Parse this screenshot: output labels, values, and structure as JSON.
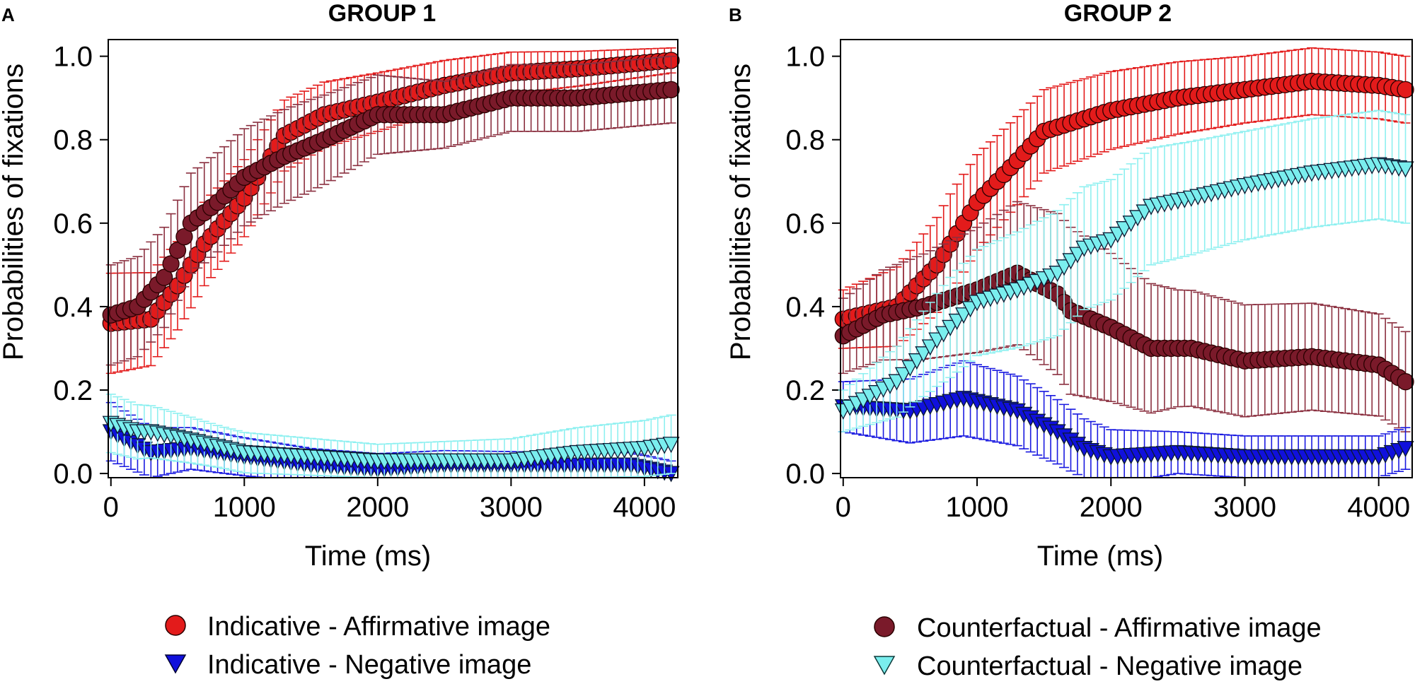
{
  "figure": {
    "legend_left": [
      {
        "label": "Indicative - Affirmative image",
        "color": "#e31b1b",
        "marker": "circle"
      },
      {
        "label": "Indicative - Negative image",
        "color": "#1010dc",
        "marker": "triangle-down"
      }
    ],
    "legend_right": [
      {
        "label": "Counterfactual - Affirmative image",
        "color": "#7a1a2a",
        "marker": "circle"
      },
      {
        "label": "Counterfactual - Negative image",
        "color": "#7aeeee",
        "marker": "triangle-down"
      }
    ]
  },
  "chart_data": [
    {
      "panel": "A",
      "title": "GROUP 1",
      "type": "line",
      "xlabel": "Time (ms)",
      "ylabel": "Probabilities of fixations",
      "xlim": [
        -20,
        4250
      ],
      "ylim": [
        -0.01,
        1.04
      ],
      "xticks": [
        0,
        1000,
        2000,
        3000,
        4000
      ],
      "xtick_labels": [
        "0",
        "1000",
        "2000",
        "3000",
        "4000"
      ],
      "yticks": [
        0,
        0.2,
        0.4,
        0.6,
        0.8,
        1.0
      ],
      "ytick_labels": [
        "0.0",
        "0.2",
        "0.4",
        "0.6",
        "0.8",
        "1.0"
      ],
      "x_start": 0,
      "x_step": 50,
      "x_count": 85,
      "series": [
        {
          "name": "Indicative - Affirmative image",
          "color": "#e31b1b",
          "err_color": "#e31b1b",
          "marker": "circle",
          "anchors": [
            [
              0,
              0.36
            ],
            [
              300,
              0.37
            ],
            [
              500,
              0.45
            ],
            [
              700,
              0.55
            ],
            [
              1000,
              0.66
            ],
            [
              1300,
              0.81
            ],
            [
              1600,
              0.86
            ],
            [
              2000,
              0.89
            ],
            [
              2500,
              0.93
            ],
            [
              3000,
              0.96
            ],
            [
              3500,
              0.97
            ],
            [
              4200,
              0.99
            ]
          ],
          "err_anchors": [
            [
              0,
              0.12
            ],
            [
              700,
              0.1
            ],
            [
              1500,
              0.08
            ],
            [
              3000,
              0.05
            ],
            [
              4200,
              0.03
            ]
          ]
        },
        {
          "name": "Counterfactual - Affirmative image",
          "color": "#7a1a2a",
          "err_color": "#8b3040",
          "marker": "circle",
          "anchors": [
            [
              0,
              0.38
            ],
            [
              200,
              0.4
            ],
            [
              400,
              0.47
            ],
            [
              600,
              0.6
            ],
            [
              800,
              0.65
            ],
            [
              1000,
              0.71
            ],
            [
              1300,
              0.76
            ],
            [
              1600,
              0.8
            ],
            [
              2000,
              0.86
            ],
            [
              2500,
              0.86
            ],
            [
              3000,
              0.9
            ],
            [
              3500,
              0.9
            ],
            [
              4200,
              0.92
            ]
          ],
          "err_anchors": [
            [
              0,
              0.12
            ],
            [
              700,
              0.12
            ],
            [
              1500,
              0.11
            ],
            [
              2500,
              0.08
            ],
            [
              4200,
              0.08
            ]
          ]
        },
        {
          "name": "Indicative - Negative image",
          "color": "#1010dc",
          "err_color": "#1a1ae0",
          "marker": "triangle-down",
          "anchors": [
            [
              0,
              0.1
            ],
            [
              300,
              0.05
            ],
            [
              600,
              0.06
            ],
            [
              1000,
              0.04
            ],
            [
              1500,
              0.02
            ],
            [
              2000,
              0.01
            ],
            [
              2500,
              0.02
            ],
            [
              3000,
              0.02
            ],
            [
              3500,
              0.02
            ],
            [
              3900,
              0.02
            ],
            [
              4200,
              0.0
            ]
          ],
          "err_anchors": [
            [
              0,
              0.07
            ],
            [
              600,
              0.05
            ],
            [
              1500,
              0.04
            ],
            [
              3500,
              0.03
            ],
            [
              4200,
              0.03
            ]
          ]
        },
        {
          "name": "Counterfactual - Negative image",
          "color": "#7aeeee",
          "err_color": "#8ef0f0",
          "marker": "triangle-down",
          "anchors": [
            [
              0,
              0.12
            ],
            [
              200,
              0.1
            ],
            [
              300,
              0.1
            ],
            [
              600,
              0.08
            ],
            [
              1000,
              0.05
            ],
            [
              1500,
              0.04
            ],
            [
              2000,
              0.03
            ],
            [
              2500,
              0.03
            ],
            [
              3000,
              0.03
            ],
            [
              3500,
              0.05
            ],
            [
              4000,
              0.06
            ],
            [
              4200,
              0.07
            ]
          ],
          "err_anchors": [
            [
              0,
              0.07
            ],
            [
              800,
              0.05
            ],
            [
              2000,
              0.04
            ],
            [
              3500,
              0.06
            ],
            [
              4200,
              0.07
            ]
          ]
        }
      ]
    },
    {
      "panel": "B",
      "title": "GROUP 2",
      "type": "line",
      "xlabel": "Time (ms)",
      "ylabel": "Probabilities of fixations",
      "xlim": [
        -20,
        4250
      ],
      "ylim": [
        -0.01,
        1.04
      ],
      "xticks": [
        0,
        1000,
        2000,
        3000,
        4000
      ],
      "xtick_labels": [
        "0",
        "1000",
        "2000",
        "3000",
        "4000"
      ],
      "yticks": [
        0,
        0.2,
        0.4,
        0.6,
        0.8,
        1.0
      ],
      "ytick_labels": [
        "0.0",
        "0.2",
        "0.4",
        "0.6",
        "0.8",
        "1.0"
      ],
      "x_start": 0,
      "x_step": 50,
      "x_count": 85,
      "series": [
        {
          "name": "Indicative - Affirmative image",
          "color": "#e31b1b",
          "err_color": "#e31b1b",
          "marker": "circle",
          "anchors": [
            [
              0,
              0.37
            ],
            [
              400,
              0.4
            ],
            [
              700,
              0.5
            ],
            [
              1000,
              0.65
            ],
            [
              1300,
              0.75
            ],
            [
              1500,
              0.82
            ],
            [
              2000,
              0.87
            ],
            [
              2500,
              0.9
            ],
            [
              3000,
              0.92
            ],
            [
              3500,
              0.94
            ],
            [
              4000,
              0.93
            ],
            [
              4200,
              0.92
            ]
          ],
          "err_anchors": [
            [
              0,
              0.07
            ],
            [
              800,
              0.12
            ],
            [
              1500,
              0.1
            ],
            [
              3000,
              0.08
            ],
            [
              4200,
              0.08
            ]
          ]
        },
        {
          "name": "Counterfactual - Affirmative image",
          "color": "#7a1a2a",
          "err_color": "#8b3040",
          "marker": "circle",
          "anchors": [
            [
              0,
              0.33
            ],
            [
              300,
              0.38
            ],
            [
              600,
              0.4
            ],
            [
              1000,
              0.44
            ],
            [
              1300,
              0.48
            ],
            [
              1600,
              0.43
            ],
            [
              1700,
              0.39
            ],
            [
              2000,
              0.35
            ],
            [
              2300,
              0.3
            ],
            [
              2600,
              0.3
            ],
            [
              3000,
              0.27
            ],
            [
              3500,
              0.28
            ],
            [
              4000,
              0.26
            ],
            [
              4200,
              0.22
            ]
          ],
          "err_anchors": [
            [
              0,
              0.09
            ],
            [
              1000,
              0.15
            ],
            [
              1700,
              0.2
            ],
            [
              2500,
              0.14
            ],
            [
              4200,
              0.12
            ]
          ]
        },
        {
          "name": "Indicative - Negative image",
          "color": "#1010dc",
          "err_color": "#1a1ae0",
          "marker": "triangle-down",
          "anchors": [
            [
              0,
              0.16
            ],
            [
              500,
              0.15
            ],
            [
              900,
              0.18
            ],
            [
              1300,
              0.15
            ],
            [
              1600,
              0.1
            ],
            [
              1800,
              0.06
            ],
            [
              2000,
              0.04
            ],
            [
              2500,
              0.05
            ],
            [
              3000,
              0.04
            ],
            [
              3500,
              0.04
            ],
            [
              4000,
              0.04
            ],
            [
              4200,
              0.06
            ]
          ],
          "err_anchors": [
            [
              0,
              0.06
            ],
            [
              900,
              0.09
            ],
            [
              1500,
              0.08
            ],
            [
              2500,
              0.05
            ],
            [
              4200,
              0.05
            ]
          ]
        },
        {
          "name": "Counterfactual - Negative image",
          "color": "#7aeeee",
          "err_color": "#8ef0f0",
          "marker": "triangle-down",
          "anchors": [
            [
              0,
              0.15
            ],
            [
              400,
              0.22
            ],
            [
              700,
              0.32
            ],
            [
              1000,
              0.41
            ],
            [
              1300,
              0.44
            ],
            [
              1600,
              0.48
            ],
            [
              1800,
              0.54
            ],
            [
              2000,
              0.56
            ],
            [
              2300,
              0.64
            ],
            [
              2600,
              0.66
            ],
            [
              3000,
              0.69
            ],
            [
              3500,
              0.72
            ],
            [
              4000,
              0.74
            ],
            [
              4200,
              0.73
            ]
          ],
          "err_anchors": [
            [
              0,
              0.05
            ],
            [
              800,
              0.12
            ],
            [
              1600,
              0.15
            ],
            [
              3000,
              0.13
            ],
            [
              4200,
              0.13
            ]
          ]
        }
      ]
    }
  ]
}
